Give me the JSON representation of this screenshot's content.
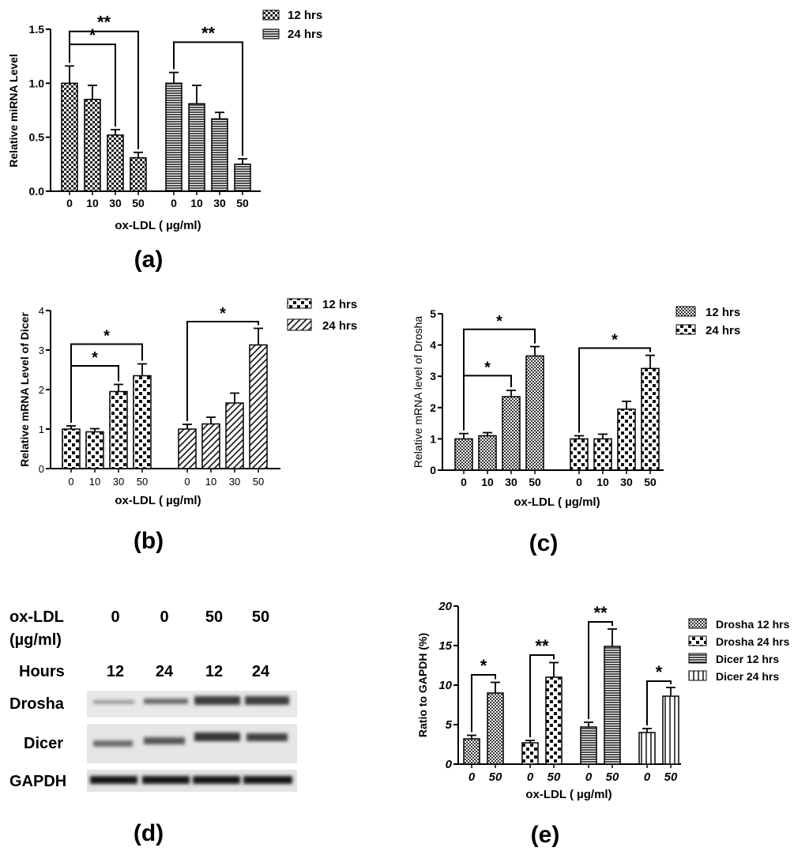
{
  "panel_labels": {
    "a": "(a)",
    "b": "(b)",
    "c": "(c)",
    "d": "(d)",
    "e": "(e)"
  },
  "chart_data": [
    {
      "id": "a",
      "type": "bar",
      "ylabel": "Relative miRNA Level",
      "xlabel": "ox-LDL ( µg/ml)",
      "ylim": [
        0,
        1.5
      ],
      "yticks": [
        "0.0",
        "0.5",
        "1.0",
        "1.5"
      ],
      "legend": [
        "12 hrs",
        "24 hrs"
      ],
      "legend_position": "top-right",
      "groups": [
        {
          "name": "12 hrs",
          "categories": [
            "0",
            "10",
            "30",
            "50"
          ],
          "values": [
            1.0,
            0.85,
            0.52,
            0.31
          ],
          "errors": [
            0.16,
            0.13,
            0.05,
            0.05
          ]
        },
        {
          "name": "24 hrs",
          "categories": [
            "0",
            "10",
            "30",
            "50"
          ],
          "values": [
            1.0,
            0.81,
            0.67,
            0.25
          ],
          "errors": [
            0.1,
            0.17,
            0.06,
            0.05
          ]
        }
      ],
      "significance": [
        {
          "group": 0,
          "from": 0,
          "to": 3,
          "label": "**",
          "level": 1.48
        },
        {
          "group": 0,
          "from": 0,
          "to": 2,
          "label": "*",
          "level": 1.36
        },
        {
          "group": 1,
          "from": 0,
          "to": 3,
          "label": "**",
          "level": 1.38
        }
      ]
    },
    {
      "id": "b",
      "type": "bar",
      "ylabel": "Relative mRNA Level of Dicer",
      "xlabel": "ox-LDL ( µg/ml)",
      "ylim": [
        0,
        4
      ],
      "yticks": [
        "0",
        "1",
        "2",
        "3",
        "4"
      ],
      "legend": [
        "12 hrs",
        "24 hrs"
      ],
      "legend_position": "top-right",
      "groups": [
        {
          "name": "12 hrs",
          "categories": [
            "0",
            "10",
            "30",
            "50"
          ],
          "values": [
            1.0,
            0.93,
            1.95,
            2.35
          ],
          "errors": [
            0.08,
            0.08,
            0.18,
            0.3
          ]
        },
        {
          "name": "24 hrs",
          "categories": [
            "0",
            "10",
            "30",
            "50"
          ],
          "values": [
            1.0,
            1.13,
            1.66,
            3.13
          ],
          "errors": [
            0.12,
            0.17,
            0.25,
            0.42
          ]
        }
      ],
      "significance": [
        {
          "group": 0,
          "from": 0,
          "to": 3,
          "label": "*",
          "level": 3.15
        },
        {
          "group": 0,
          "from": 0,
          "to": 2,
          "label": "*",
          "level": 2.6
        },
        {
          "group": 1,
          "from": 0,
          "to": 3,
          "label": "*",
          "level": 3.72
        }
      ]
    },
    {
      "id": "c",
      "type": "bar",
      "ylabel": "Relative mRNA level of Drosha",
      "xlabel": "ox-LDL ( µg/ml)",
      "ylim": [
        0,
        5
      ],
      "yticks": [
        "0",
        "1",
        "2",
        "3",
        "4",
        "5"
      ],
      "legend": [
        "12 hrs",
        "24 hrs"
      ],
      "legend_position": "top-right",
      "groups": [
        {
          "name": "12 hrs",
          "categories": [
            "0",
            "10",
            "30",
            "50"
          ],
          "values": [
            1.0,
            1.1,
            2.35,
            3.65
          ],
          "errors": [
            0.17,
            0.1,
            0.2,
            0.3
          ]
        },
        {
          "name": "24 hrs",
          "categories": [
            "0",
            "10",
            "30",
            "50"
          ],
          "values": [
            1.0,
            1.0,
            1.95,
            3.25
          ],
          "errors": [
            0.1,
            0.15,
            0.25,
            0.42
          ]
        }
      ],
      "significance": [
        {
          "group": 0,
          "from": 0,
          "to": 3,
          "label": "*",
          "level": 4.5
        },
        {
          "group": 0,
          "from": 0,
          "to": 2,
          "label": "*",
          "level": 3.02
        },
        {
          "group": 1,
          "from": 0,
          "to": 3,
          "label": "*",
          "level": 3.9
        }
      ]
    },
    {
      "id": "e",
      "type": "bar",
      "ylabel": "Ratio to GAPDH (%)",
      "xlabel": "ox-LDL ( µg/ml)",
      "ylim": [
        0,
        20
      ],
      "yticks": [
        "0",
        "5",
        "10",
        "15",
        "20"
      ],
      "legend": [
        "Drosha 12 hrs",
        "Drosha 24 hrs",
        "Dicer 12 hrs",
        "Dicer 24 hrs"
      ],
      "legend_position": "right",
      "groups": [
        {
          "name": "Drosha 12 hrs",
          "categories": [
            "0",
            "50"
          ],
          "values": [
            3.2,
            9.0
          ],
          "errors": [
            0.45,
            1.35
          ]
        },
        {
          "name": "Drosha 24 hrs",
          "categories": [
            "0",
            "50"
          ],
          "values": [
            2.7,
            11.0
          ],
          "errors": [
            0.3,
            1.85
          ]
        },
        {
          "name": "Dicer 12 hrs",
          "categories": [
            "0",
            "50"
          ],
          "values": [
            4.7,
            14.9
          ],
          "errors": [
            0.6,
            2.2
          ]
        },
        {
          "name": "Dicer 24 hrs",
          "categories": [
            "0",
            "50"
          ],
          "values": [
            4.0,
            8.6
          ],
          "errors": [
            0.5,
            1.1
          ]
        }
      ],
      "significance": [
        {
          "group": 0,
          "from": 0,
          "to": 1,
          "label": "*",
          "level": 11.3
        },
        {
          "group": 1,
          "from": 0,
          "to": 1,
          "label": "**",
          "level": 13.8
        },
        {
          "group": 2,
          "from": 0,
          "to": 1,
          "label": "**",
          "level": 18.0
        },
        {
          "group": 3,
          "from": 0,
          "to": 1,
          "label": "*",
          "level": 10.5
        }
      ]
    }
  ],
  "blot": {
    "treatment_label_line1": "ox-LDL",
    "treatment_label_line2": "(µg/ml)",
    "hours_label": "Hours",
    "doses": [
      "0",
      "0",
      "50",
      "50"
    ],
    "hours": [
      "12",
      "24",
      "12",
      "24"
    ],
    "proteins": [
      "Drosha",
      "Dicer",
      "GAPDH"
    ]
  }
}
